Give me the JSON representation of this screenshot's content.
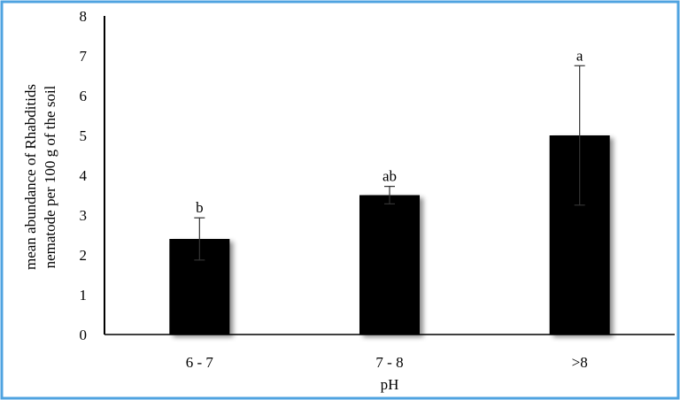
{
  "chart_data": {
    "type": "bar",
    "categories": [
      "6 - 7",
      "7 - 8",
      ">8"
    ],
    "values": [
      2.4,
      3.5,
      5.0
    ],
    "errors": [
      0.53,
      0.22,
      1.75
    ],
    "significance_labels": [
      "b",
      "ab",
      "a"
    ],
    "xlabel": "pH",
    "ylabel_line1": "mean abundance of Rhabditids",
    "ylabel_line2": "nematode per 100 g of the soil",
    "ylim": [
      0,
      8
    ],
    "yticks": [
      "0",
      "1",
      "2",
      "3",
      "4",
      "5",
      "6",
      "7",
      "8"
    ],
    "grid": false,
    "bar_color": "#000000",
    "frame_color": "#4fa3e0"
  }
}
